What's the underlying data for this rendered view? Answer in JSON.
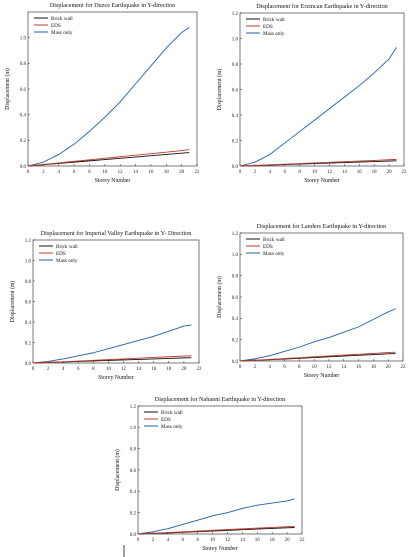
{
  "legend_labels": [
    "Brick wall",
    "EDS",
    "Mass only"
  ],
  "series_colors": {
    "Brick wall": "#111111",
    "EDS": "#c0392b",
    "Mass only": "#1f5fa8"
  },
  "chart_data": [
    {
      "type": "line",
      "title": "Displacement for Duzce Earthquake in Y-direction",
      "xlabel": "Storey Number",
      "ylabel": "Displacement (m)",
      "xlim": [
        0,
        22
      ],
      "ylim": [
        0,
        1.2
      ],
      "xticks": [
        0,
        2,
        4,
        6,
        8,
        10,
        12,
        14,
        16,
        18,
        20,
        22
      ],
      "yticks": [
        0.0,
        0.2,
        0.4,
        0.6,
        0.8,
        1.0
      ],
      "legend": "top-left",
      "x": [
        0,
        2,
        4,
        6,
        8,
        10,
        12,
        14,
        16,
        18,
        20,
        21
      ],
      "series": [
        {
          "name": "Brick wall",
          "values": [
            0,
            0.01,
            0.02,
            0.03,
            0.04,
            0.05,
            0.06,
            0.07,
            0.08,
            0.09,
            0.1,
            0.105
          ]
        },
        {
          "name": "EDS",
          "values": [
            0,
            0.012,
            0.024,
            0.036,
            0.048,
            0.06,
            0.072,
            0.084,
            0.096,
            0.108,
            0.12,
            0.128
          ]
        },
        {
          "name": "Mass only",
          "values": [
            0,
            0.03,
            0.09,
            0.17,
            0.27,
            0.38,
            0.5,
            0.64,
            0.78,
            0.92,
            1.04,
            1.08
          ]
        }
      ]
    },
    {
      "type": "line",
      "title": "Displacement for Erzincan Earthquake in Y-direction",
      "xlabel": "Storey Number",
      "ylabel": "Displacement (m)",
      "xlim": [
        0,
        22
      ],
      "ylim": [
        0,
        1.2
      ],
      "xticks": [
        0,
        2,
        4,
        6,
        8,
        10,
        12,
        14,
        16,
        18,
        20,
        22
      ],
      "yticks": [
        0.0,
        0.2,
        0.4,
        0.6,
        0.8,
        1.0,
        1.2
      ],
      "legend": "top-left",
      "x": [
        0,
        2,
        4,
        6,
        8,
        10,
        12,
        14,
        16,
        18,
        20,
        21
      ],
      "series": [
        {
          "name": "Brick wall",
          "values": [
            0,
            0.003,
            0.007,
            0.011,
            0.015,
            0.019,
            0.023,
            0.027,
            0.031,
            0.035,
            0.039,
            0.041
          ]
        },
        {
          "name": "EDS",
          "values": [
            0,
            0.004,
            0.009,
            0.014,
            0.019,
            0.024,
            0.029,
            0.034,
            0.039,
            0.044,
            0.049,
            0.052
          ]
        },
        {
          "name": "Mass only",
          "values": [
            0,
            0.03,
            0.09,
            0.18,
            0.27,
            0.36,
            0.45,
            0.54,
            0.63,
            0.73,
            0.84,
            0.93
          ]
        }
      ]
    },
    {
      "type": "line",
      "title": "Displacement for Imperial Valley Earthquake in Y- Direction",
      "xlabel": "Storey Number",
      "ylabel": "Displacement (m)",
      "xlim": [
        0,
        22
      ],
      "ylim": [
        0,
        1.2
      ],
      "xticks": [
        0,
        2,
        4,
        6,
        8,
        10,
        12,
        14,
        16,
        18,
        20,
        22
      ],
      "yticks": [
        0.0,
        0.2,
        0.4,
        0.6,
        0.8,
        1.0,
        1.2
      ],
      "legend": "top-left",
      "x": [
        0,
        2,
        4,
        6,
        8,
        10,
        12,
        14,
        16,
        18,
        20,
        21
      ],
      "series": [
        {
          "name": "Brick wall",
          "values": [
            0,
            0.005,
            0.01,
            0.015,
            0.02,
            0.025,
            0.03,
            0.035,
            0.04,
            0.045,
            0.05,
            0.052
          ]
        },
        {
          "name": "EDS",
          "values": [
            0,
            0.006,
            0.012,
            0.019,
            0.026,
            0.033,
            0.04,
            0.047,
            0.054,
            0.061,
            0.068,
            0.071
          ]
        },
        {
          "name": "Mass only",
          "values": [
            0,
            0.015,
            0.04,
            0.07,
            0.1,
            0.14,
            0.18,
            0.22,
            0.26,
            0.31,
            0.36,
            0.37
          ]
        }
      ]
    },
    {
      "type": "line",
      "title": "Displacement for Landers Earthquake in Y-direction",
      "xlabel": "Storey Number",
      "ylabel": "Displacement (m)",
      "xlim": [
        0,
        22
      ],
      "ylim": [
        0,
        1.2
      ],
      "xticks": [
        0,
        2,
        4,
        6,
        8,
        10,
        12,
        14,
        16,
        18,
        20,
        22
      ],
      "yticks": [
        0.0,
        0.2,
        0.4,
        0.6,
        0.8,
        1.0,
        1.2
      ],
      "legend": "top-left",
      "x": [
        0,
        2,
        4,
        6,
        8,
        10,
        12,
        14,
        16,
        18,
        20,
        21
      ],
      "series": [
        {
          "name": "Brick wall",
          "values": [
            0,
            0.006,
            0.012,
            0.018,
            0.025,
            0.032,
            0.039,
            0.046,
            0.053,
            0.06,
            0.067,
            0.07
          ]
        },
        {
          "name": "EDS",
          "values": [
            0,
            0.007,
            0.015,
            0.023,
            0.031,
            0.039,
            0.047,
            0.055,
            0.063,
            0.071,
            0.079,
            0.083
          ]
        },
        {
          "name": "Mass only",
          "values": [
            0,
            0.02,
            0.05,
            0.09,
            0.13,
            0.18,
            0.22,
            0.27,
            0.32,
            0.39,
            0.46,
            0.49
          ]
        }
      ]
    },
    {
      "type": "line",
      "title": "Displacement for Nahanni Earthquake in Y-direction",
      "xlabel": "Storey Number",
      "ylabel": "Displacement (m)",
      "xlim": [
        0,
        22
      ],
      "ylim": [
        0,
        1.2
      ],
      "xticks": [
        0,
        2,
        4,
        6,
        8,
        10,
        12,
        14,
        16,
        18,
        20,
        22
      ],
      "yticks": [
        0.0,
        0.2,
        0.4,
        0.6,
        0.8,
        1.0,
        1.2
      ],
      "legend": "top-left",
      "x": [
        0,
        2,
        4,
        6,
        8,
        10,
        12,
        14,
        16,
        18,
        20,
        21
      ],
      "series": [
        {
          "name": "Brick wall",
          "values": [
            0,
            0.005,
            0.01,
            0.016,
            0.022,
            0.028,
            0.034,
            0.04,
            0.046,
            0.052,
            0.058,
            0.061
          ]
        },
        {
          "name": "EDS",
          "values": [
            0,
            0.006,
            0.013,
            0.02,
            0.027,
            0.034,
            0.041,
            0.048,
            0.055,
            0.062,
            0.069,
            0.072
          ]
        },
        {
          "name": "Mass only",
          "values": [
            0,
            0.02,
            0.05,
            0.09,
            0.13,
            0.17,
            0.2,
            0.24,
            0.27,
            0.29,
            0.31,
            0.33
          ]
        }
      ]
    }
  ]
}
